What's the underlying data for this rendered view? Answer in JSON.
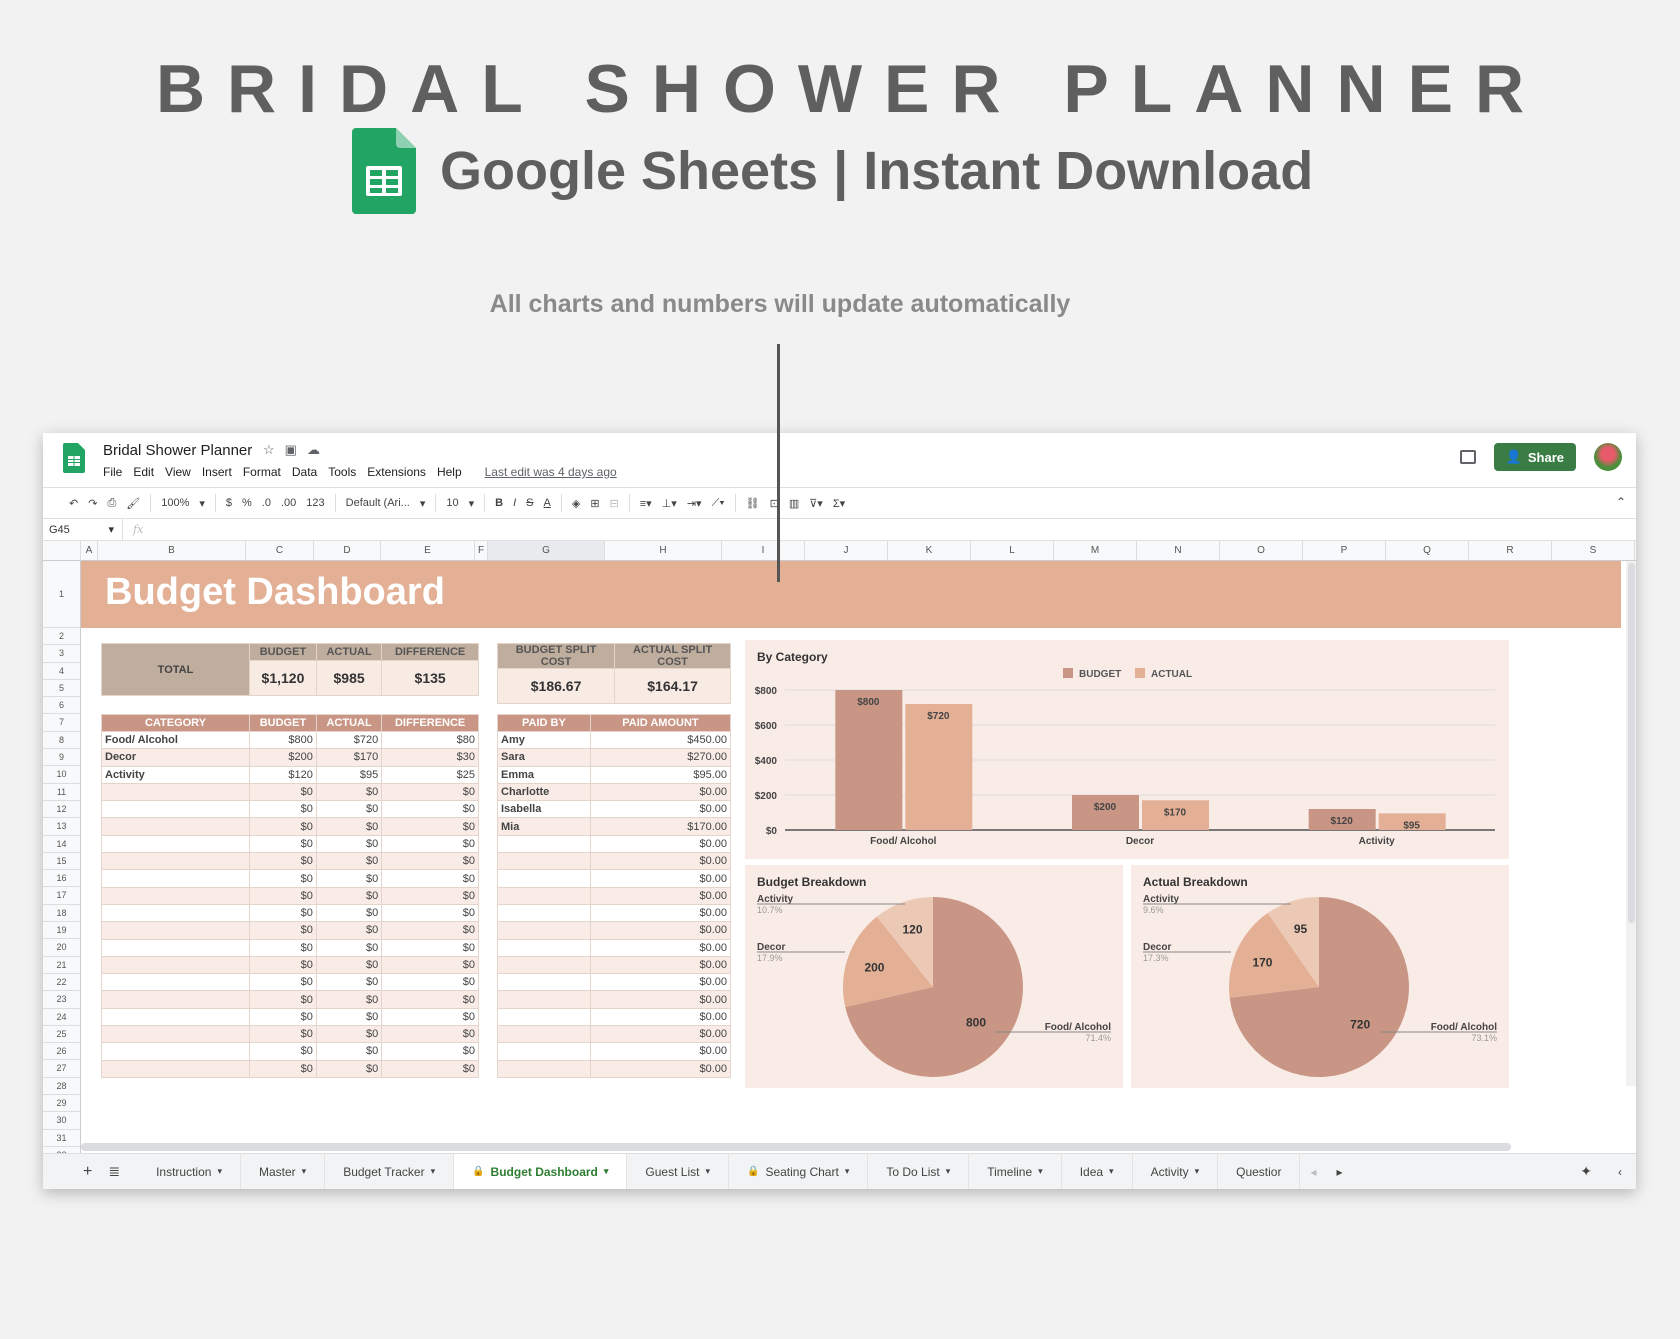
{
  "hero": {
    "title": "BRIDAL SHOWER PLANNER",
    "subtitle": "Google Sheets | Instant Download",
    "note": "All charts and numbers will update automatically"
  },
  "app": {
    "doc_title": "Bridal Shower Planner",
    "menu": [
      "File",
      "Edit",
      "View",
      "Insert",
      "Format",
      "Data",
      "Tools",
      "Extensions",
      "Help"
    ],
    "last_edit": "Last edit was 4 days ago",
    "share_label": "Share",
    "toolbar": {
      "zoom": "100%",
      "currency": "$",
      "percent": "%",
      "dec_less": ".0",
      "dec_more": ".00",
      "format": "123",
      "font": "Default (Ari...",
      "size": "10",
      "bold": "B",
      "italic": "I",
      "strike": "S",
      "textcolor": "A"
    },
    "name_box": "G45",
    "fx": "fx",
    "columns": [
      "A",
      "B",
      "C",
      "D",
      "E",
      "F",
      "G",
      "H",
      "I",
      "J",
      "K",
      "L",
      "M",
      "N",
      "O",
      "P",
      "Q",
      "R",
      "S"
    ],
    "rows": [
      "1",
      "2",
      "3",
      "4",
      "5",
      "6",
      "7",
      "8",
      "9",
      "10",
      "11",
      "12",
      "13",
      "14",
      "15",
      "16",
      "17",
      "18",
      "19",
      "20",
      "21",
      "22",
      "23",
      "24",
      "25",
      "26",
      "27",
      "28",
      "29",
      "30",
      "31",
      "32"
    ]
  },
  "dashboard": {
    "banner_title": "Budget Dashboard",
    "totals": {
      "label": "TOTAL",
      "headers": [
        "BUDGET",
        "ACTUAL",
        "DIFFERENCE"
      ],
      "values": [
        "$1,120",
        "$985",
        "$135"
      ]
    },
    "split": {
      "headers": [
        "BUDGET SPLIT COST",
        "ACTUAL SPLIT COST"
      ],
      "values": [
        "$186.67",
        "$164.17"
      ]
    },
    "category_table": {
      "headers": [
        "CATEGORY",
        "BUDGET",
        "ACTUAL",
        "DIFFERENCE"
      ],
      "rows": [
        [
          "Food/ Alcohol",
          "$800",
          "$720",
          "$80"
        ],
        [
          "Decor",
          "$200",
          "$170",
          "$30"
        ],
        [
          "Activity",
          "$120",
          "$95",
          "$25"
        ],
        [
          "",
          "$0",
          "$0",
          "$0"
        ],
        [
          "",
          "$0",
          "$0",
          "$0"
        ],
        [
          "",
          "$0",
          "$0",
          "$0"
        ],
        [
          "",
          "$0",
          "$0",
          "$0"
        ],
        [
          "",
          "$0",
          "$0",
          "$0"
        ],
        [
          "",
          "$0",
          "$0",
          "$0"
        ],
        [
          "",
          "$0",
          "$0",
          "$0"
        ],
        [
          "",
          "$0",
          "$0",
          "$0"
        ],
        [
          "",
          "$0",
          "$0",
          "$0"
        ],
        [
          "",
          "$0",
          "$0",
          "$0"
        ],
        [
          "",
          "$0",
          "$0",
          "$0"
        ],
        [
          "",
          "$0",
          "$0",
          "$0"
        ],
        [
          "",
          "$0",
          "$0",
          "$0"
        ],
        [
          "",
          "$0",
          "$0",
          "$0"
        ],
        [
          "",
          "$0",
          "$0",
          "$0"
        ],
        [
          "",
          "$0",
          "$0",
          "$0"
        ],
        [
          "",
          "$0",
          "$0",
          "$0"
        ]
      ]
    },
    "paid_table": {
      "headers": [
        "PAID BY",
        "PAID AMOUNT"
      ],
      "rows": [
        [
          "Amy",
          "$450.00"
        ],
        [
          "Sara",
          "$270.00"
        ],
        [
          "Emma",
          "$95.00"
        ],
        [
          "Charlotte",
          "$0.00"
        ],
        [
          "Isabella",
          "$0.00"
        ],
        [
          "Mia",
          "$170.00"
        ],
        [
          "",
          "$0.00"
        ],
        [
          "",
          "$0.00"
        ],
        [
          "",
          "$0.00"
        ],
        [
          "",
          "$0.00"
        ],
        [
          "",
          "$0.00"
        ],
        [
          "",
          "$0.00"
        ],
        [
          "",
          "$0.00"
        ],
        [
          "",
          "$0.00"
        ],
        [
          "",
          "$0.00"
        ],
        [
          "",
          "$0.00"
        ],
        [
          "",
          "$0.00"
        ],
        [
          "",
          "$0.00"
        ],
        [
          "",
          "$0.00"
        ],
        [
          "",
          "$0.00"
        ]
      ]
    }
  },
  "chart_data": [
    {
      "type": "bar",
      "title": "By Category",
      "categories": [
        "Food/ Alcohol",
        "Decor",
        "Activity"
      ],
      "series": [
        {
          "name": "BUDGET",
          "values": [
            800,
            200,
            120
          ],
          "labels": [
            "$800",
            "$200",
            "$120"
          ],
          "color": "#c99685"
        },
        {
          "name": "ACTUAL",
          "values": [
            720,
            170,
            95
          ],
          "labels": [
            "$720",
            "$170",
            "$95"
          ],
          "color": "#e3b096"
        }
      ],
      "yticks": [
        "$0",
        "$200",
        "$400",
        "$600",
        "$800"
      ],
      "ylim": [
        0,
        800
      ],
      "legend_position": "top",
      "grid": true
    },
    {
      "type": "pie",
      "title": "Budget Breakdown",
      "categories": [
        "Food/ Alcohol",
        "Decor",
        "Activity"
      ],
      "values": [
        800,
        200,
        120
      ],
      "percents": [
        "71.4%",
        "17.9%",
        "10.7%"
      ]
    },
    {
      "type": "pie",
      "title": "Actual Breakdown",
      "categories": [
        "Food/ Alcohol",
        "Decor",
        "Activity"
      ],
      "values": [
        720,
        170,
        95
      ],
      "percents": [
        "73.1%",
        "17.3%",
        "9.6%"
      ]
    }
  ],
  "tabs": [
    {
      "label": "Instruction",
      "locked": false,
      "active": false
    },
    {
      "label": "Master",
      "locked": false,
      "active": false
    },
    {
      "label": "Budget Tracker",
      "locked": false,
      "active": false
    },
    {
      "label": "Budget Dashboard",
      "locked": true,
      "active": true
    },
    {
      "label": "Guest List",
      "locked": false,
      "active": false
    },
    {
      "label": "Seating Chart",
      "locked": true,
      "active": false
    },
    {
      "label": "To Do List",
      "locked": false,
      "active": false
    },
    {
      "label": "Timeline",
      "locked": false,
      "active": false
    },
    {
      "label": "Idea",
      "locked": false,
      "active": false
    },
    {
      "label": "Activity",
      "locked": false,
      "active": false
    },
    {
      "label": "Questior",
      "locked": false,
      "active": false
    }
  ],
  "colors": {
    "banner": "#e3b096",
    "header_dark": "#c99685",
    "header_tan": "#bfad9e",
    "panel": "#f9ece6",
    "brand_green": "#3a7d44"
  }
}
